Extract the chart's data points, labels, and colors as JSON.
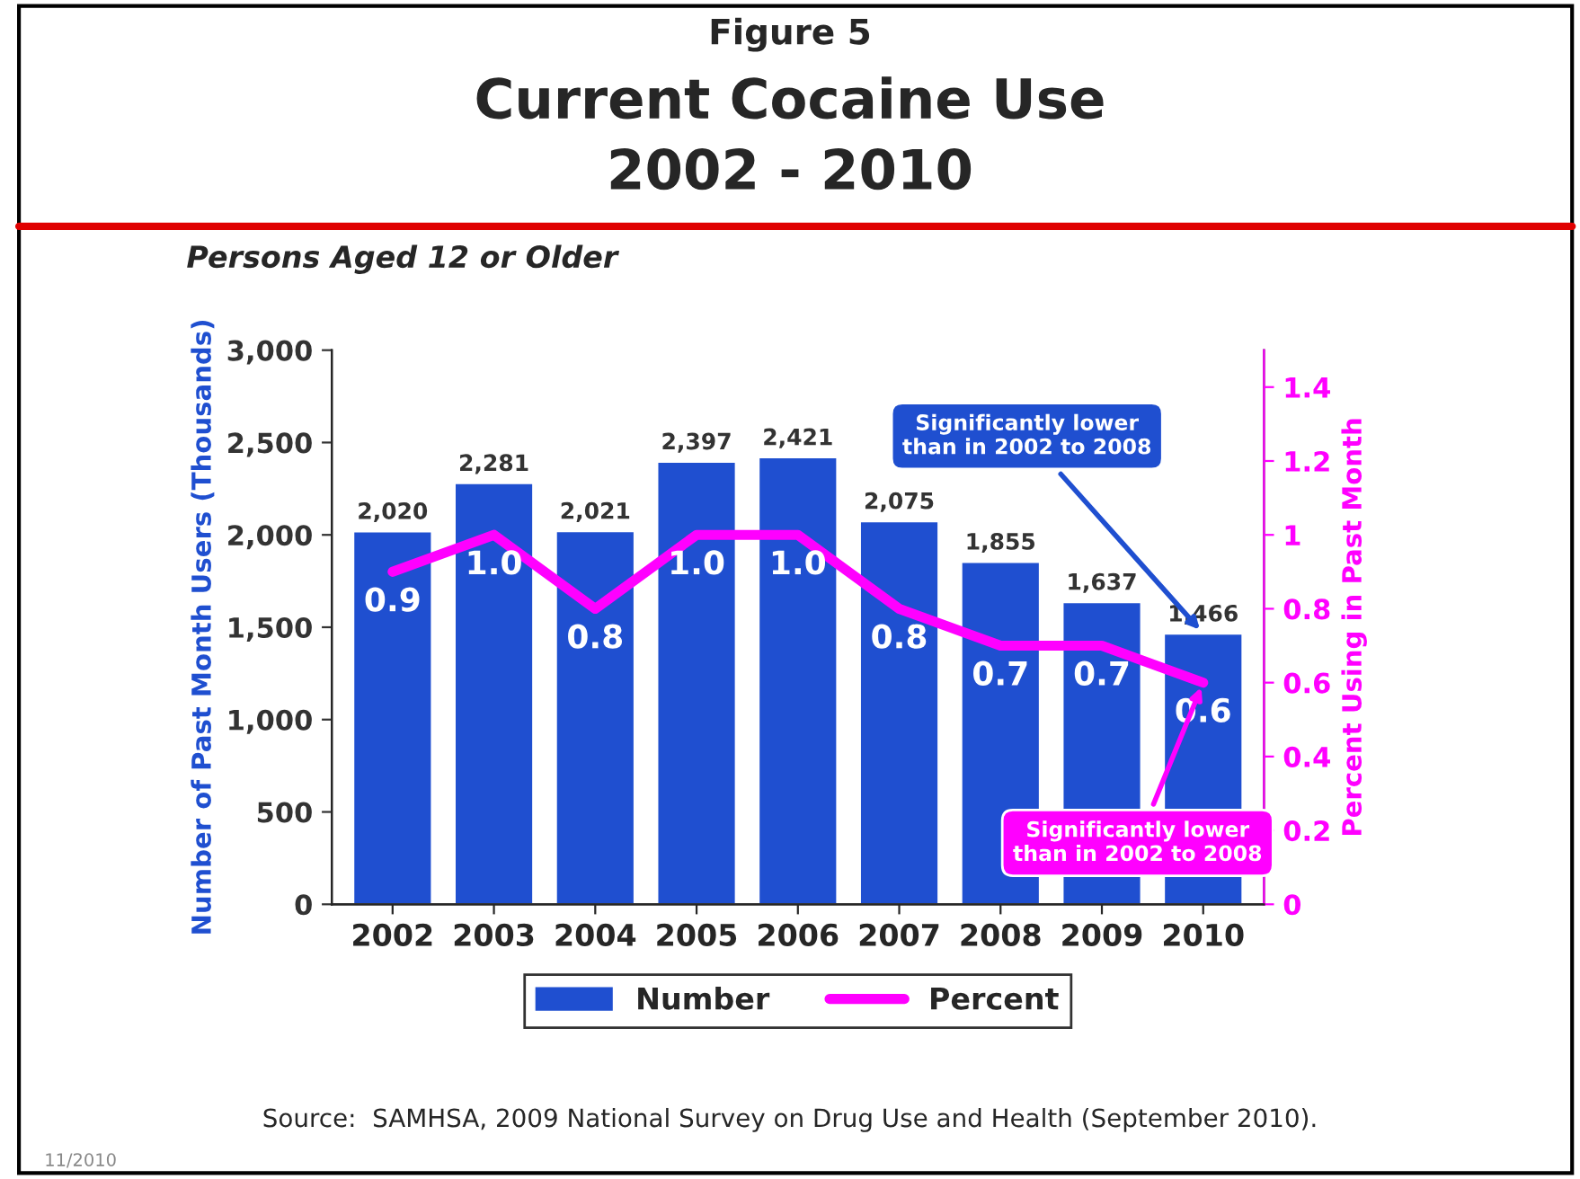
{
  "chart_data": {
    "type": "bar",
    "title": "Figure 5\nCurrent Cocaine Use\n2002 - 2010",
    "subtitle": "Persons Aged 12 or Older",
    "ylabel": "Number of Past Month Users (Thousands)",
    "y2label": "Percent Using in Past Month",
    "categories": [
      "2002",
      "2003",
      "2004",
      "2005",
      "2006",
      "2007",
      "2008",
      "2009",
      "2010"
    ],
    "series": [
      {
        "name": "Number",
        "color": "#1f4fd0",
        "values": [
          2020,
          2281,
          2021,
          2397,
          2421,
          2075,
          1855,
          1637,
          1466
        ],
        "value_labels": [
          "2,020",
          "2,281",
          "2,021",
          "2,397",
          "2,421",
          "2,075",
          "1,855",
          "1,637",
          "1,466"
        ]
      },
      {
        "name": "Percent",
        "type": "line",
        "axis": "y2",
        "color": "#ff00ff",
        "values": [
          0.9,
          1.0,
          0.8,
          1.0,
          1.0,
          0.8,
          0.7,
          0.7,
          0.6
        ],
        "value_labels": [
          "0.9",
          "1.0",
          "0.8",
          "1.0",
          "1.0",
          "0.8",
          "0.7",
          "0.7",
          "0.6"
        ]
      }
    ],
    "ylim": [
      0,
      3000
    ],
    "yticks": [
      {
        "value": 0,
        "label": "0"
      },
      {
        "value": 500,
        "label": "500"
      },
      {
        "value": 1000,
        "label": "1,000"
      },
      {
        "value": 1500,
        "label": "1,500"
      },
      {
        "value": 2000,
        "label": "2,000"
      },
      {
        "value": 2500,
        "label": "2,500"
      },
      {
        "value": 3000,
        "label": "3,000"
      }
    ],
    "y2lim": [
      0,
      1.5
    ],
    "y2ticks": [
      0,
      0.2,
      0.4,
      0.6,
      0.8,
      1,
      1.2,
      1.4
    ],
    "annotations": [
      {
        "text": "Significantly lower\nthan in 2002 to 2008",
        "x": "2010",
        "y": 1466
      },
      "Significantly lower\nthan in 2002 to 2008",
      "Source:  SAMHSA, 2009 National Survey on Drug Use and Health (September 2010).",
      "11/2010"
    ],
    "legend": "bottom",
    "grid": false,
    "marker": "none",
    "line_style": "solid"
  }
}
